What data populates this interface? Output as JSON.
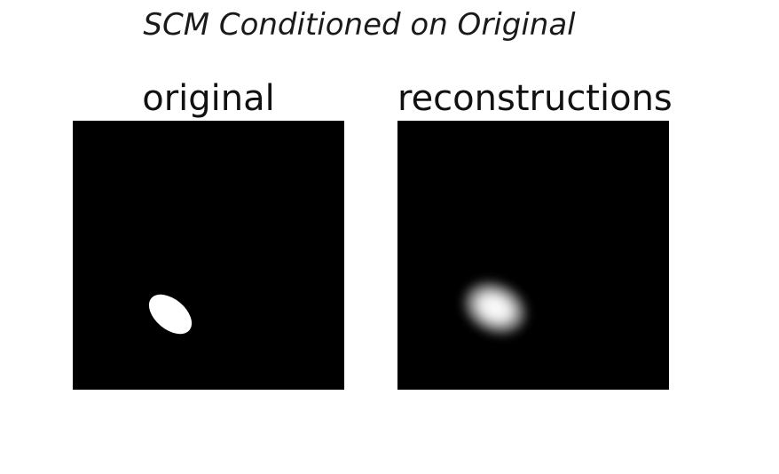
{
  "figure": {
    "title": "SCM Conditioned on Original"
  },
  "panels": [
    {
      "title": "original"
    },
    {
      "title": "reconstructions"
    }
  ],
  "colors": {
    "background": "#ffffff",
    "panel_fill": "#000000",
    "blob": "#ffffff"
  }
}
